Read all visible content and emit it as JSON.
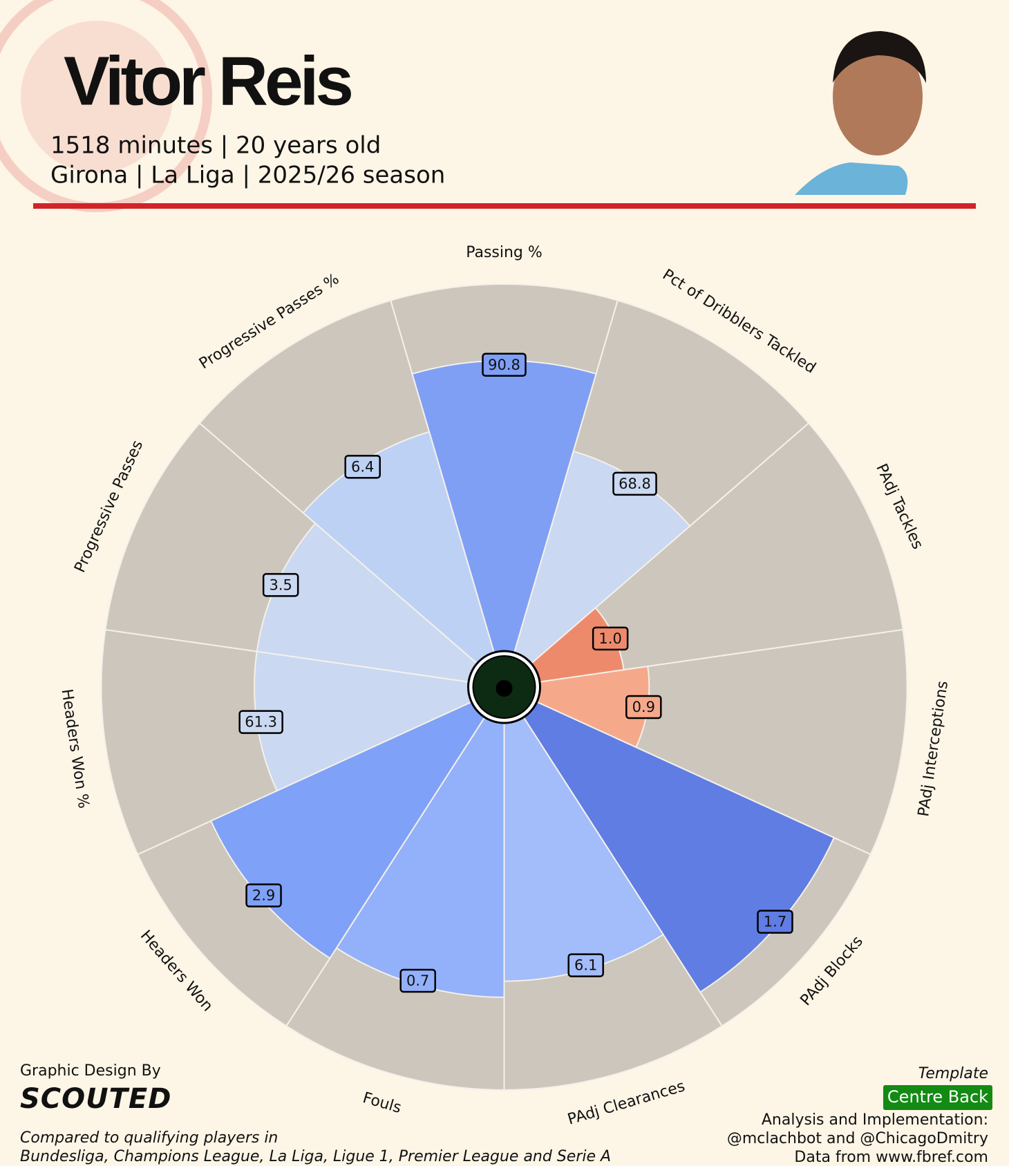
{
  "chart_data": {
    "type": "pizza",
    "title": "Vitor Reis",
    "subtitle": [
      "1518 minutes | 20 years old",
      "Girona | La Liga | 2025/26 season"
    ],
    "categories": [
      "Passing %",
      "Pct of Dribblers Tackled",
      "PAdj Tackles",
      "PAdj Interceptions",
      "PAdj Blocks",
      "PAdj Clearances",
      "Fouls",
      "Headers Won",
      "Headers Won %",
      "Progressive Passes",
      "Progressive Passes %"
    ],
    "values": [
      90.8,
      68.8,
      1.0,
      0.9,
      1.7,
      6.1,
      0.7,
      2.9,
      61.3,
      3.5,
      6.4
    ],
    "value_labels": [
      "90.8",
      "68.8",
      "1.0",
      "0.9",
      "1.7",
      "6.1",
      "0.7",
      "2.9",
      "61.3",
      "3.5",
      "6.4"
    ],
    "percentiles": [
      81,
      61,
      30,
      36,
      90,
      73,
      77,
      80,
      62,
      62,
      66
    ],
    "colors": [
      "#7f9ff5",
      "#cbd8f1",
      "#ee8a6c",
      "#f5a98a",
      "#5f7de3",
      "#a3bcfa",
      "#93b1fa",
      "#7fa1f7",
      "#cbd8f1",
      "#cbd8f1",
      "#bdd1f5"
    ],
    "ylim": [
      0,
      100
    ]
  },
  "footer": {
    "design_by": "Graphic Design By",
    "brand": "SCOUTED",
    "compared": [
      "Compared to qualifying players in",
      "Bundesliga, Champions League, La Liga, Ligue 1, Premier League and Serie A"
    ],
    "template_label": "Template",
    "template": "Centre Back",
    "credits": [
      "Analysis and Implementation:",
      "@mclachbot and @ChicagoDmitry",
      "Data from www.fbref.com"
    ]
  }
}
